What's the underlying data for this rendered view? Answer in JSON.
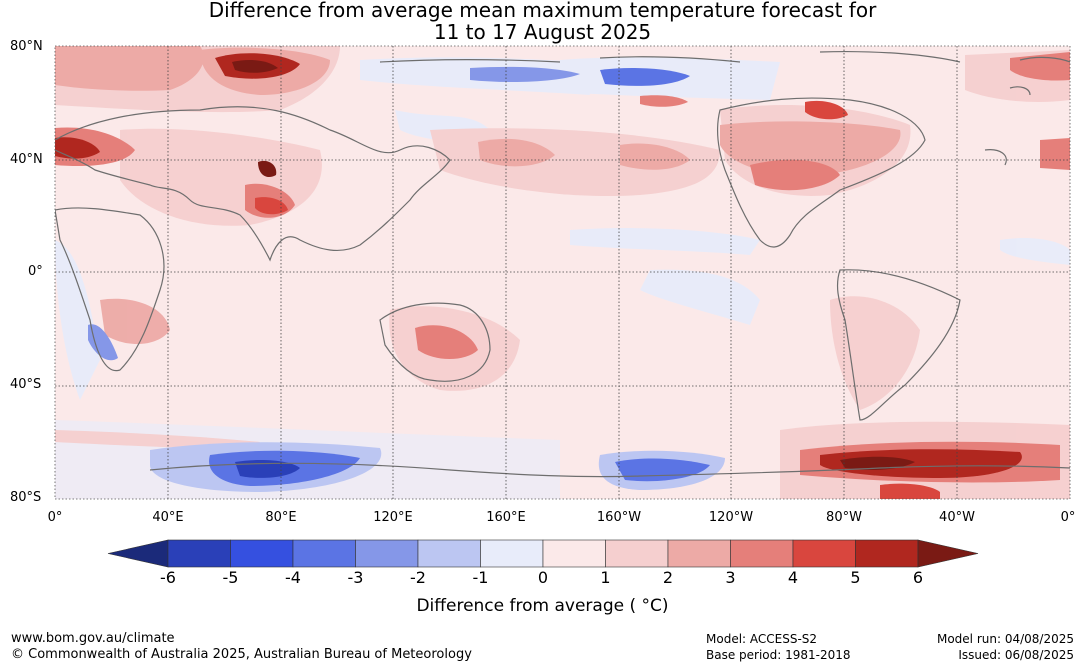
{
  "title_line1": "Difference from average mean maximum temperature forecast for",
  "title_line2": "11 to 17 August 2025",
  "lat_labels": [
    "80°N",
    "40°N",
    "0°",
    "40°S",
    "80°S"
  ],
  "lon_labels": [
    "0°",
    "40°E",
    "80°E",
    "120°E",
    "160°E",
    "160°W",
    "120°W",
    "80°W",
    "40°W",
    "0°"
  ],
  "colorbar": {
    "ticks": [
      "-6",
      "-5",
      "-4",
      "-3",
      "-2",
      "-1",
      "0",
      "1",
      "2",
      "3",
      "4",
      "5",
      "6"
    ],
    "colors": [
      "#1b2a7a",
      "#2a40b8",
      "#3550e0",
      "#5b74e4",
      "#8597e8",
      "#bcc6f2",
      "#e8ecfa",
      "#fbe9e9",
      "#f5cfcf",
      "#edaaa6",
      "#e57f7a",
      "#d9463e",
      "#b0271f",
      "#7a1a14"
    ],
    "label": "Difference from average ( °C)"
  },
  "footer": {
    "url": "www.bom.gov.au/climate",
    "copyright": "© Commonwealth of Australia 2025, Australian Bureau of Meteorology",
    "model": "Model: ACCESS-S2",
    "base_period": "Base period: 1981-2018",
    "model_run": "Model run: 04/08/2025",
    "issued": "Issued: 06/08/2025"
  }
}
